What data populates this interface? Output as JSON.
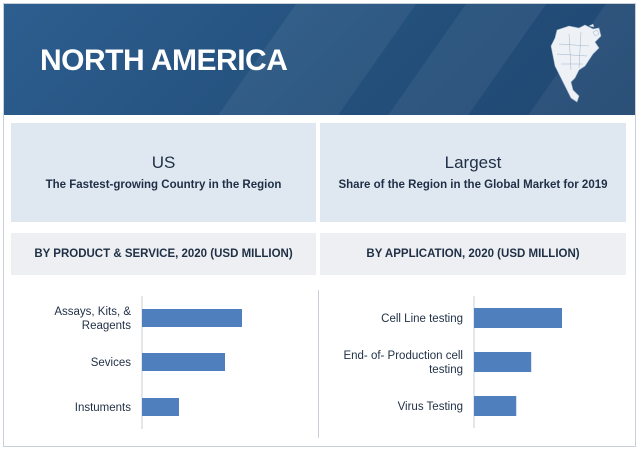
{
  "banner": {
    "title": "NORTH AMERICA"
  },
  "colors": {
    "banner": "#24507c",
    "panel": "#dfe7f1",
    "bar": "#4f80bd",
    "text": "#1f2f45"
  },
  "highlights": [
    {
      "main": "US",
      "sub": "The Fastest-growing Country in the Region"
    },
    {
      "main": "Largest",
      "sub": "Share of the Region in the Global Market for 2019"
    }
  ],
  "chart_data": [
    {
      "type": "bar",
      "orientation": "horizontal",
      "title": "BY PRODUCT & SERVICE, 2020 (USD MILLION)",
      "categories": [
        "Assays, Kits, & Reagents",
        "Sevices",
        "Instuments"
      ],
      "category_lines": [
        [
          "Assays, Kits, &",
          "Reagents"
        ],
        [
          "Sevices"
        ],
        [
          "Instuments"
        ]
      ],
      "values": [
        100,
        83,
        37
      ],
      "xlim": [
        0,
        100
      ],
      "grid": false,
      "legend": "none"
    },
    {
      "type": "bar",
      "orientation": "horizontal",
      "title": "BY APPLICATION,  2020 (USD MILLION)",
      "categories": [
        "Cell Line testing",
        "End-of-Production cell testing",
        "Virus Testing"
      ],
      "category_lines": [
        [
          "Cell Line testing"
        ],
        [
          "End- of- Production cell",
          "testing"
        ],
        [
          "Virus Testing"
        ]
      ],
      "values": [
        100,
        65,
        48
      ],
      "xlim": [
        0,
        100
      ],
      "grid": false,
      "legend": "none"
    }
  ]
}
